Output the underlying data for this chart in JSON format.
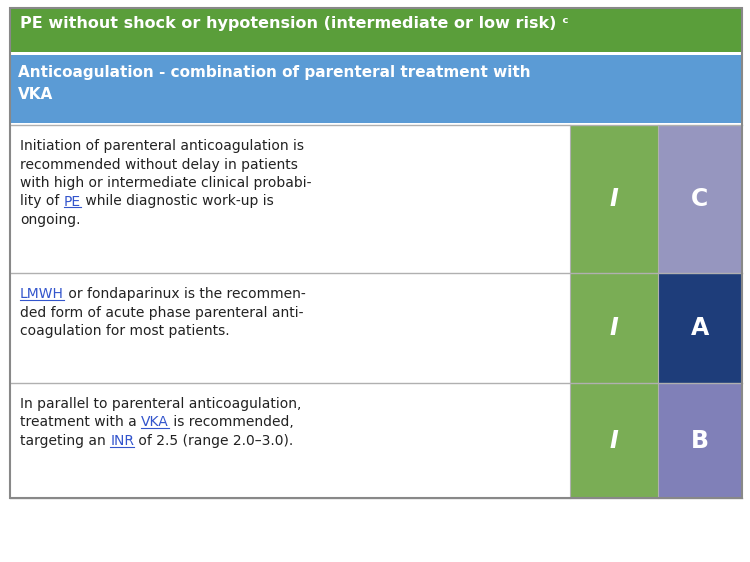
{
  "title": "PE without shock or hypotension (intermediate or low risk) ᶜ",
  "subtitle_line1": "Anticoagulation - combination of parenteral treatment with",
  "subtitle_line2": "VKA",
  "title_bg": "#5a9e3a",
  "subtitle_bg": "#5b9bd5",
  "title_fg": "#ffffff",
  "subtitle_fg": "#ffffff",
  "rows": [
    {
      "lines": [
        "Initiation of parenteral anticoagulation is",
        "recommended without delay in patients",
        "with high or intermediate clinical probabi-",
        "lity of PE while diagnostic work-up is",
        "ongoing."
      ],
      "underline_words": [
        "PE"
      ],
      "class_label": "I",
      "evidence_label": "C",
      "class_color": "#7aad55",
      "evidence_color": "#9696bf"
    },
    {
      "lines": [
        "LMWH or fondaparinux is the recommen-",
        "ded form of acute phase parenteral anti-",
        "coagulation for most patients."
      ],
      "underline_words": [
        "LMWH"
      ],
      "class_label": "I",
      "evidence_label": "A",
      "class_color": "#7aad55",
      "evidence_color": "#1e3d7a"
    },
    {
      "lines": [
        "In parallel to parenteral anticoagulation,",
        "treatment with a VKA is recommended,",
        "targeting an INR of 2.5 (range 2.0–3.0)."
      ],
      "underline_words": [
        "VKA",
        "INR"
      ],
      "class_label": "I",
      "evidence_label": "B",
      "class_color": "#7aad55",
      "evidence_color": "#8080b8"
    }
  ],
  "border_color": "#b0b0b0",
  "link_color": "#3355cc",
  "text_color": "#222222"
}
